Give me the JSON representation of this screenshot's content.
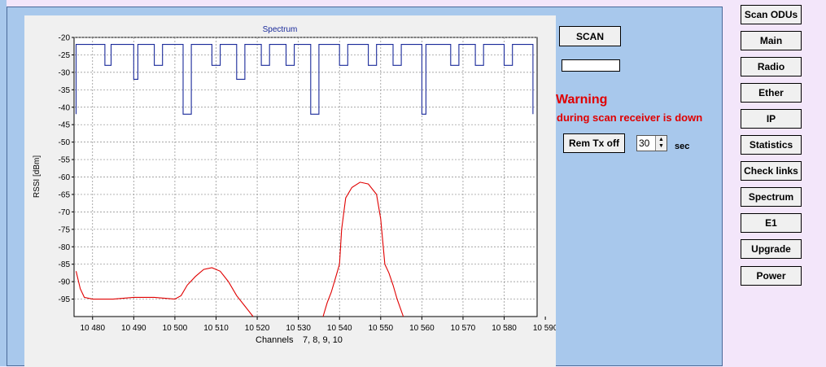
{
  "side_buttons": [
    "Scan ODUs",
    "Main",
    "Radio",
    "Ether",
    "IP",
    "Statistics",
    "Check links",
    "Spectrum",
    "E1",
    "Upgrade",
    "Power"
  ],
  "controls": {
    "scan_label": "SCAN",
    "scan_field_value": "",
    "warning_title": "Warning",
    "warning_message": "during scan receiver is down",
    "rem_tx_label": "Rem Tx  off",
    "interval_value": "30",
    "interval_unit": "sec"
  },
  "colors": {
    "panel": "#a8c8ec",
    "background": "#f3e6fa",
    "warning": "#e00000",
    "scan_series": "#1a2a9a",
    "rssi_series": "#e00000"
  },
  "chart_data": {
    "type": "line",
    "title": "Spectrum",
    "ylabel": "RSSI [dBm]",
    "xlabel": "Channels",
    "xlabel_suffix": "7, 8, 9, 10",
    "xlim": [
      10475.5,
      10588
    ],
    "ylim": [
      -100,
      -20
    ],
    "grid": true,
    "y_ticks": [
      -20,
      -25,
      -30,
      -35,
      -40,
      -45,
      -50,
      -55,
      -60,
      -65,
      -70,
      -75,
      -80,
      -85,
      -90,
      -95
    ],
    "x_ticks": [
      10480,
      10490,
      10500,
      10510,
      10520,
      10530,
      10540,
      10550,
      10560,
      10570,
      10580,
      10590
    ],
    "x_tick_labels": [
      "10 480",
      "10 490",
      "10 500",
      "10 510",
      "10 520",
      "10 530",
      "10 540",
      "10 550",
      "10 560",
      "10 570",
      "10 580",
      "10 590"
    ],
    "series": [
      {
        "points": [
          [
            10476,
            -42
          ],
          [
            10476,
            -22
          ],
          [
            10483,
            -22
          ],
          [
            10483,
            -28
          ],
          [
            10484.5,
            -28
          ],
          [
            10484.5,
            -22
          ],
          [
            10490,
            -22
          ],
          [
            10490,
            -32
          ],
          [
            10491,
            -32
          ],
          [
            10491,
            -22
          ],
          [
            10495,
            -22
          ],
          [
            10495,
            -28
          ],
          [
            10497,
            -28
          ],
          [
            10497,
            -22
          ],
          [
            10502,
            -22
          ],
          [
            10502,
            -42
          ],
          [
            10504,
            -42
          ],
          [
            10504,
            -22
          ],
          [
            10509,
            -22
          ],
          [
            10509,
            -28
          ],
          [
            10511,
            -28
          ],
          [
            10511,
            -22
          ],
          [
            10515,
            -22
          ],
          [
            10515,
            -32
          ],
          [
            10517,
            -32
          ],
          [
            10517,
            -22
          ],
          [
            10521,
            -22
          ],
          [
            10521,
            -28
          ],
          [
            10523,
            -28
          ],
          [
            10523,
            -22
          ],
          [
            10527,
            -22
          ],
          [
            10527,
            -28
          ],
          [
            10529,
            -28
          ],
          [
            10529,
            -22
          ],
          [
            10533,
            -22
          ],
          [
            10533,
            -42
          ],
          [
            10535,
            -42
          ],
          [
            10535,
            -22
          ],
          [
            10540,
            -22
          ],
          [
            10540,
            -28
          ],
          [
            10542,
            -28
          ],
          [
            10542,
            -22
          ],
          [
            10547,
            -22
          ],
          [
            10547,
            -28
          ],
          [
            10549,
            -28
          ],
          [
            10549,
            -22
          ],
          [
            10553,
            -22
          ],
          [
            10553,
            -28
          ],
          [
            10555,
            -28
          ],
          [
            10555,
            -22
          ],
          [
            10560,
            -22
          ],
          [
            10560,
            -42
          ],
          [
            10561,
            -42
          ],
          [
            10561,
            -22
          ],
          [
            10567,
            -22
          ],
          [
            10567,
            -28
          ],
          [
            10569,
            -28
          ],
          [
            10569,
            -22
          ],
          [
            10573,
            -22
          ],
          [
            10573,
            -28
          ],
          [
            10575,
            -28
          ],
          [
            10575,
            -22
          ],
          [
            10580,
            -22
          ],
          [
            10580,
            -28
          ],
          [
            10582,
            -28
          ],
          [
            10582,
            -22
          ],
          [
            10587,
            -22
          ],
          [
            10587,
            -42
          ]
        ]
      },
      {
        "points": [
          [
            10476,
            -87
          ],
          [
            10477,
            -92
          ],
          [
            10478,
            -94.5
          ],
          [
            10480,
            -95
          ],
          [
            10485,
            -95
          ],
          [
            10490,
            -94.5
          ],
          [
            10495,
            -94.5
          ],
          [
            10500,
            -95
          ],
          [
            10501.5,
            -94
          ],
          [
            10503,
            -91
          ],
          [
            10505,
            -88.5
          ],
          [
            10507,
            -86.5
          ],
          [
            10509,
            -86
          ],
          [
            10511,
            -87
          ],
          [
            10513,
            -90
          ],
          [
            10515,
            -94
          ],
          [
            10517,
            -97
          ],
          [
            10519,
            -100
          ]
        ]
      },
      {
        "points": [
          [
            10536,
            -100
          ],
          [
            10537,
            -96
          ],
          [
            10538,
            -93
          ],
          [
            10539,
            -89
          ],
          [
            10540,
            -85
          ],
          [
            10540.5,
            -75
          ],
          [
            10541.5,
            -66
          ],
          [
            10543,
            -63
          ],
          [
            10545,
            -61.5
          ],
          [
            10547,
            -62
          ],
          [
            10549,
            -65
          ],
          [
            10550,
            -72
          ],
          [
            10551,
            -85
          ],
          [
            10552,
            -87.5
          ],
          [
            10553,
            -91
          ],
          [
            10554,
            -95
          ],
          [
            10555.5,
            -100
          ]
        ]
      }
    ]
  }
}
